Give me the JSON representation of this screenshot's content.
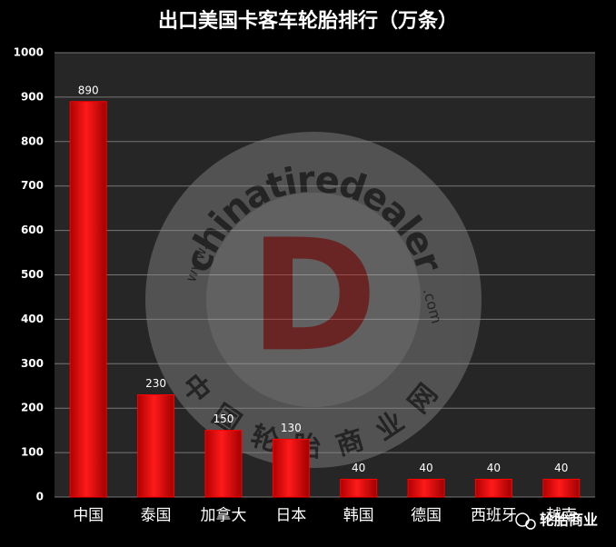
{
  "chart_data": {
    "type": "bar",
    "title": "出口美国卡客车轮胎排行（万条）",
    "categories": [
      "中国",
      "泰国",
      "加拿大",
      "日本",
      "韩国",
      "德国",
      "西班牙",
      "越南"
    ],
    "values": [
      890,
      230,
      150,
      130,
      40,
      40,
      40,
      40
    ],
    "color": "#ff0000",
    "ylim": [
      0,
      1000
    ],
    "yticks": [
      0,
      100,
      200,
      300,
      400,
      500,
      600,
      700,
      800,
      900,
      1000
    ],
    "grid": true
  },
  "watermark": {
    "brand": "chinatiredealer",
    "prefix": "www.",
    "suffix": ".com",
    "letter": "D",
    "chinese": "中国轮胎商业网"
  },
  "footer": "轮胎商业"
}
